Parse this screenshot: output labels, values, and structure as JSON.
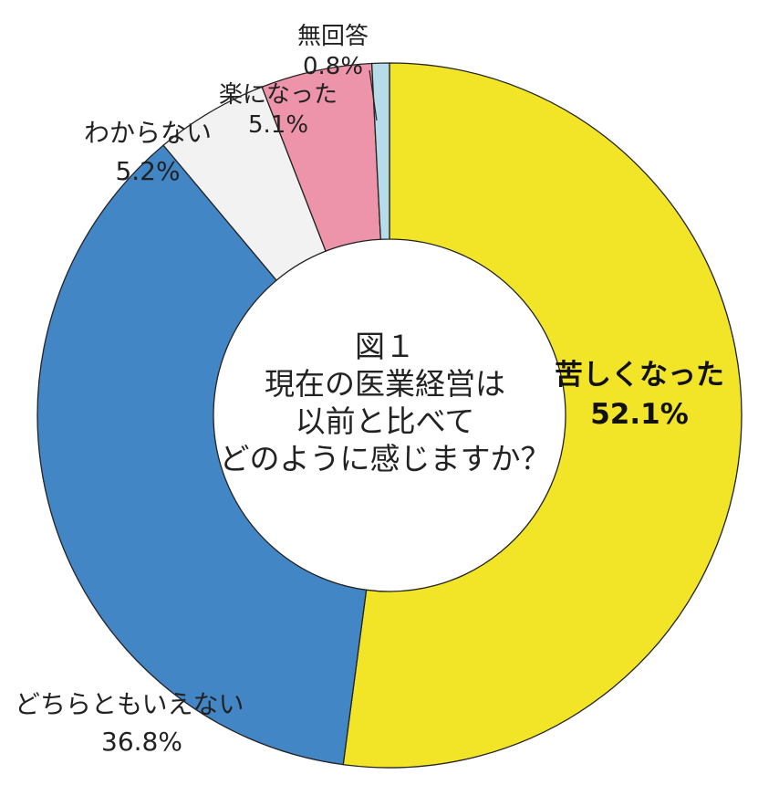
{
  "center_text": {
    "line1": "図１",
    "line2": "現在の医業経営は",
    "line3": "以前と比べて",
    "line4": "どのように感じますか？"
  },
  "chart_data": {
    "type": "pie",
    "donut": true,
    "unit": "%",
    "slices": [
      {
        "label": "苦しくなった",
        "value": 52.1,
        "value_label": "52.1%",
        "color": "#f2e528",
        "emphasis": true
      },
      {
        "label": "どちらともいえない",
        "value": 36.8,
        "value_label": "36.8%",
        "color": "#4386c6"
      },
      {
        "label": "わからない",
        "value": 5.2,
        "value_label": "5.2%",
        "color": "#f2f2f2"
      },
      {
        "label": "楽になった",
        "value": 5.1,
        "value_label": "5.1%",
        "color": "#ee94aa"
      },
      {
        "label": "無回答",
        "value": 0.8,
        "value_label": "0.8%",
        "color": "#b6dcea"
      }
    ]
  }
}
